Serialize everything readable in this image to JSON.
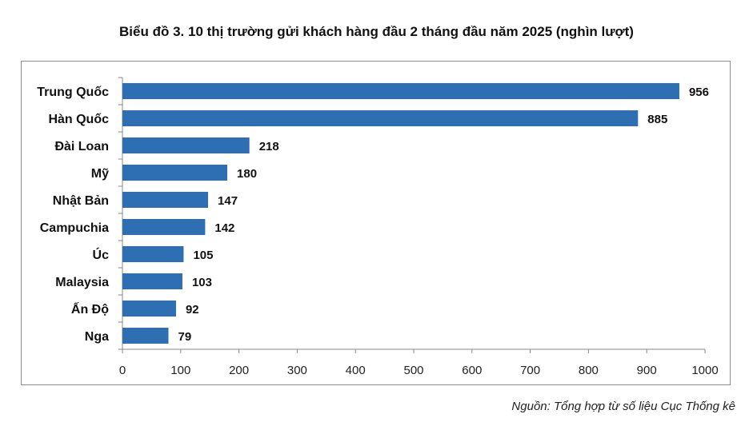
{
  "chart_data": {
    "type": "bar",
    "orientation": "horizontal",
    "title": "Biểu đồ 3. 10 thị trường gửi khách hàng đầu 2 tháng đầu năm 2025 (nghìn lượt)",
    "categories": [
      "Trung Quốc",
      "Hàn Quốc",
      "Đài Loan",
      "Mỹ",
      "Nhật Bản",
      "Campuchia",
      "Úc",
      "Malaysia",
      "Ấn Độ",
      "Nga"
    ],
    "values": [
      956,
      885,
      218,
      180,
      147,
      142,
      105,
      103,
      92,
      79
    ],
    "xlim": [
      0,
      1000
    ],
    "xticks": [
      0,
      100,
      200,
      300,
      400,
      500,
      600,
      700,
      800,
      900,
      1000
    ],
    "grid": false,
    "bar_color": "#2e6fb3",
    "data_labels": true
  },
  "source": "Nguồn: Tổng hợp từ số liệu Cục Thống kê"
}
